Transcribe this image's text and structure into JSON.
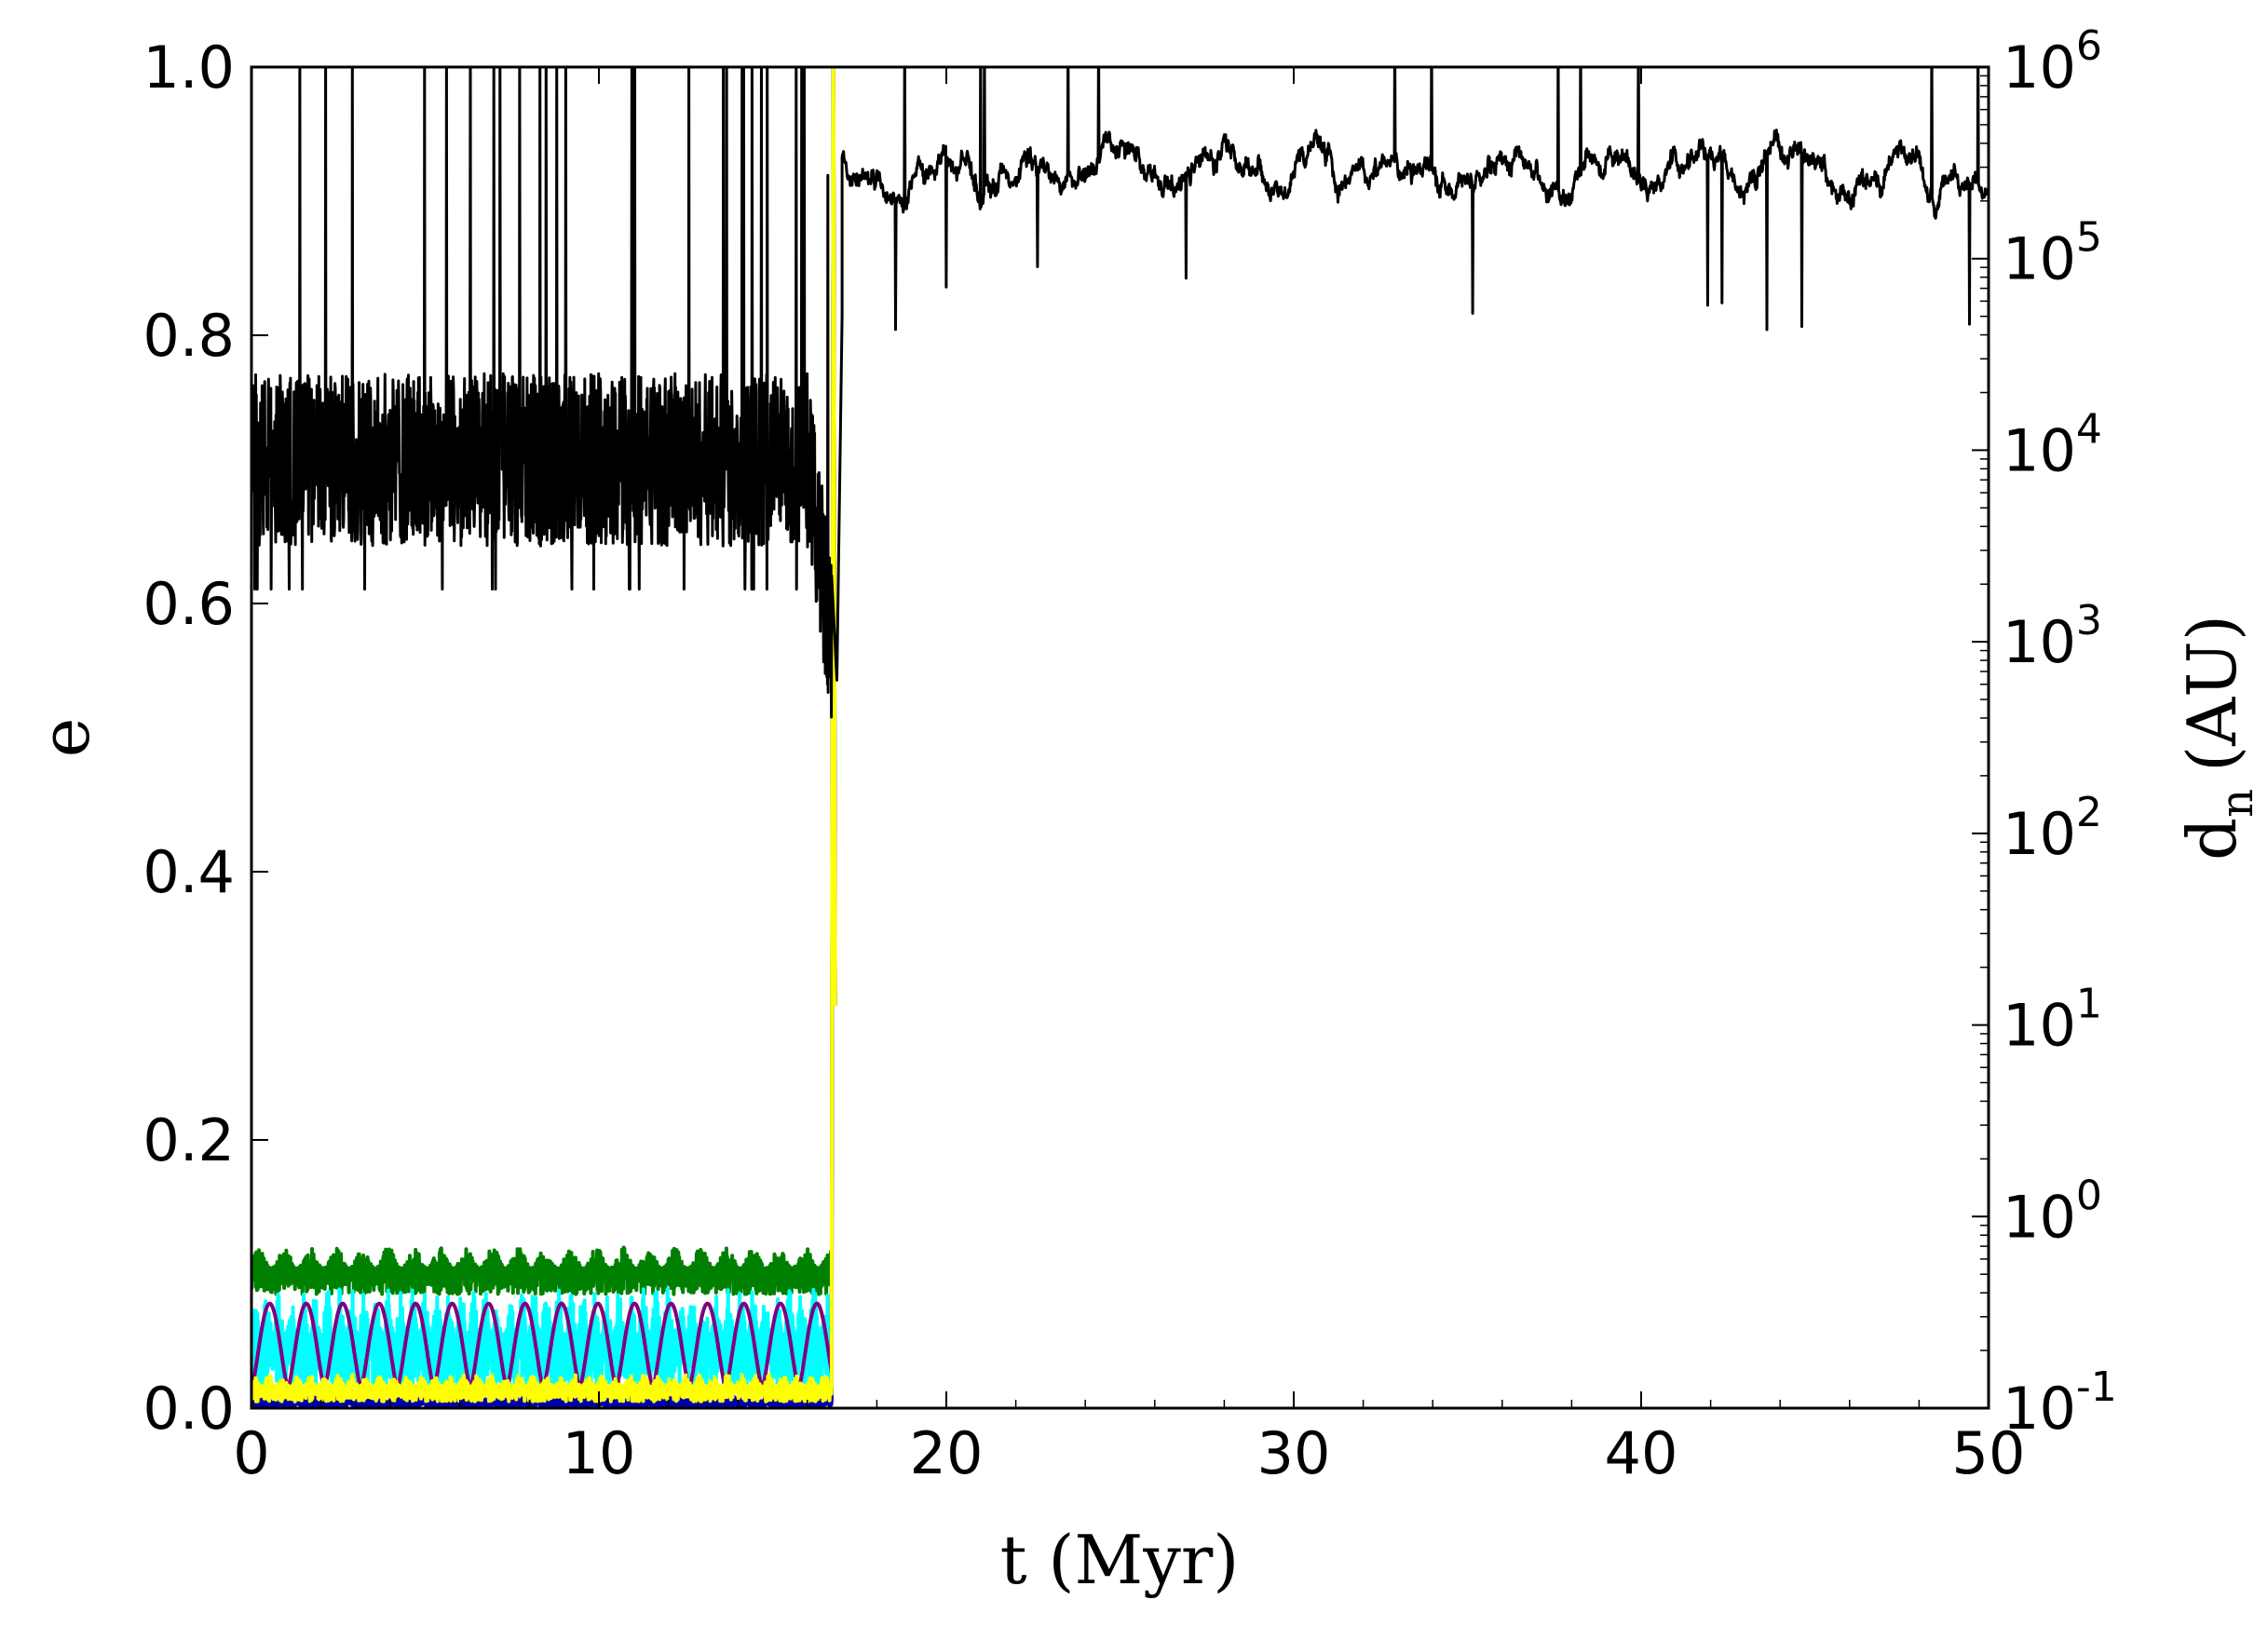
{
  "chart_data": {
    "type": "line",
    "title": "",
    "xlabel": "t (Myr)",
    "ylabel": "e",
    "y2label_main": "d",
    "y2label_sub": "n",
    "y2label_unit": "(AU)",
    "xlim": [
      0,
      50
    ],
    "ylim": [
      0,
      1.0
    ],
    "y2lim_log10": [
      -1,
      6
    ],
    "y2scale": "log",
    "grid": false,
    "legend": "none",
    "x_ticks": [
      {
        "value": 0,
        "label": "0"
      },
      {
        "value": 10,
        "label": "10"
      },
      {
        "value": 20,
        "label": "20"
      },
      {
        "value": 30,
        "label": "30"
      },
      {
        "value": 40,
        "label": "40"
      },
      {
        "value": 50,
        "label": "50"
      }
    ],
    "y_ticks": [
      {
        "value": 0.0,
        "label": "0.0"
      },
      {
        "value": 0.2,
        "label": "0.2"
      },
      {
        "value": 0.4,
        "label": "0.4"
      },
      {
        "value": 0.6,
        "label": "0.6"
      },
      {
        "value": 0.8,
        "label": "0.8"
      },
      {
        "value": 1.0,
        "label": "1.0"
      }
    ],
    "y2_ticks": [
      {
        "exp": -1,
        "base": "10",
        "sup": "-1"
      },
      {
        "exp": 0,
        "base": "10",
        "sup": "0"
      },
      {
        "exp": 1,
        "base": "10",
        "sup": "1"
      },
      {
        "exp": 2,
        "base": "10",
        "sup": "2"
      },
      {
        "exp": 3,
        "base": "10",
        "sup": "3"
      },
      {
        "exp": 4,
        "base": "10",
        "sup": "4"
      },
      {
        "exp": 5,
        "base": "10",
        "sup": "5"
      },
      {
        "exp": 6,
        "base": "10",
        "sup": "6"
      }
    ],
    "ejection_time": 16.7,
    "series": [
      {
        "color": "#008000",
        "axis": "left",
        "kind": "band",
        "note_values": "e oscillates between ~0.085 and ~0.12 until ejection at t≈16.7",
        "x_range": [
          0,
          16.7
        ],
        "min": 0.085,
        "max": 0.12,
        "period": 0.75
      },
      {
        "color": "#00ffff",
        "axis": "left",
        "kind": "band",
        "x_range": [
          0,
          16.7
        ],
        "min": 0.01,
        "max": 0.09,
        "period": 0.35
      },
      {
        "color": "#800080",
        "axis": "left",
        "kind": "oscillation",
        "x_range": [
          0,
          16.7
        ],
        "min": 0.015,
        "max": 0.078,
        "period": 1.05
      },
      {
        "color": "#0000aa",
        "axis": "left",
        "kind": "band",
        "x_range": [
          0,
          16.7
        ],
        "min": 0.0,
        "max": 0.01,
        "period": 0.3
      },
      {
        "color": "#ffff00",
        "axis": "left",
        "kind": "band",
        "x_range": [
          0,
          16.7
        ],
        "min": 0.005,
        "max": 0.025,
        "period": 0.4
      },
      {
        "color": "#000000",
        "axis": "right",
        "kind": "noisy",
        "pre_ejection_log10": {
          "x_range": [
            0,
            16.7
          ],
          "mean": 3.95,
          "spread": 0.45,
          "spikes_to": 6.0
        },
        "post_ejection_log10": {
          "x_range": [
            17.0,
            50
          ],
          "mean": 5.45,
          "spread": 0.15,
          "dips_to": 4.6,
          "spikes_to": 6.0
        }
      }
    ]
  }
}
